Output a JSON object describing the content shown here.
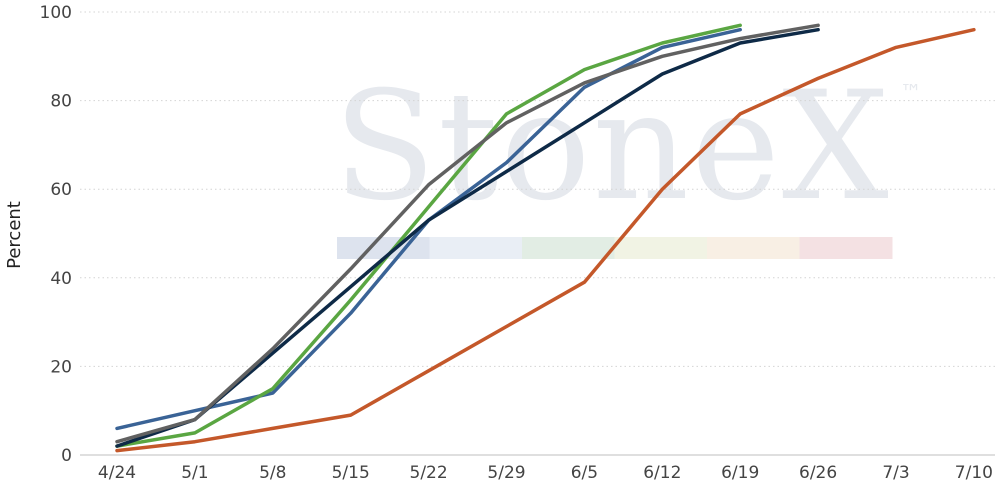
{
  "watermark": {
    "text": "StoneX",
    "tm": "™",
    "band_colors": [
      "#dde3ee",
      "#e9eef5",
      "#e2ede4",
      "#f1f3e4",
      "#f8efe4",
      "#f4e1e3"
    ]
  },
  "chart_data": {
    "type": "line",
    "title": "",
    "xlabel": "",
    "ylabel": "Percent",
    "ylim": [
      0,
      100
    ],
    "yticks": [
      0,
      20,
      40,
      60,
      80,
      100
    ],
    "grid": true,
    "categories": [
      "4/24",
      "5/1",
      "5/8",
      "5/15",
      "5/22",
      "5/29",
      "6/5",
      "6/12",
      "6/19",
      "6/26",
      "7/3",
      "7/10"
    ],
    "series": [
      {
        "color": "#3a6396",
        "values": [
          6,
          10,
          14,
          32,
          53,
          66,
          83,
          92,
          96,
          null,
          null,
          null
        ]
      },
      {
        "color": "#5aa642",
        "values": [
          2,
          5,
          15,
          35,
          56,
          77,
          87,
          93,
          97,
          null,
          null,
          null
        ]
      },
      {
        "color": "#0e2a47",
        "values": [
          2,
          8,
          23,
          38,
          53,
          64,
          75,
          86,
          93,
          96,
          null,
          null
        ]
      },
      {
        "color": "#616161",
        "values": [
          3,
          8,
          24,
          42,
          61,
          75,
          84,
          90,
          94,
          97,
          null,
          null
        ]
      },
      {
        "color": "#c4582a",
        "values": [
          1,
          3,
          6,
          9,
          19,
          29,
          39,
          60,
          77,
          85,
          92,
          96
        ]
      }
    ]
  }
}
